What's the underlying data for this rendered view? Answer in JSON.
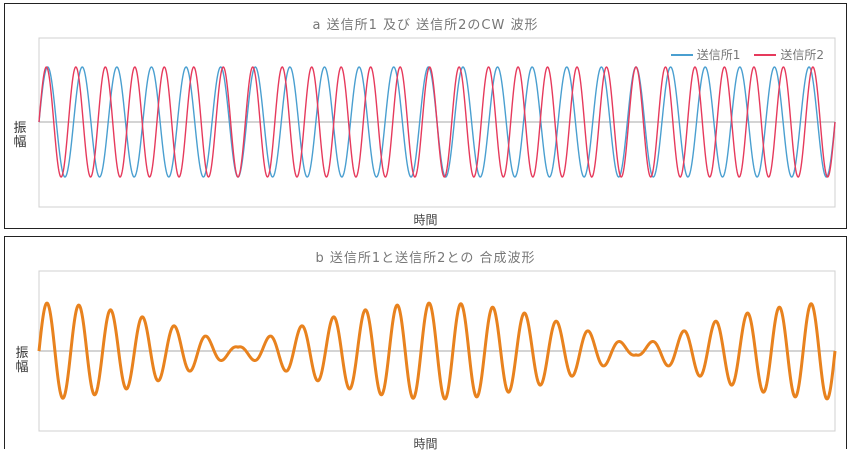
{
  "chart_data": [
    {
      "type": "line",
      "title": "a  送信所1 及び 送信所2のCW 波形",
      "xlabel": "時間",
      "ylabel": "振幅",
      "ylim": [
        -1.2,
        1.2
      ],
      "grid": false,
      "legend_position": "top-right",
      "series": [
        {
          "name": "送信所1",
          "color": "#4a9fd0",
          "cycles": 23,
          "amplitude": 1.0
        },
        {
          "name": "送信所2",
          "color": "#e63a5c",
          "cycles": 27,
          "amplitude": 1.0
        }
      ]
    },
    {
      "type": "line",
      "title": "b  送信所1と送信所2との 合成波形",
      "xlabel": "時間",
      "ylabel": "振幅",
      "ylim": [
        -1.2,
        1.2
      ],
      "grid": false,
      "series": [
        {
          "color": "#e8821e",
          "cycles": 25,
          "envelope_cycles": 2,
          "amplitude": 1.0
        }
      ]
    }
  ]
}
